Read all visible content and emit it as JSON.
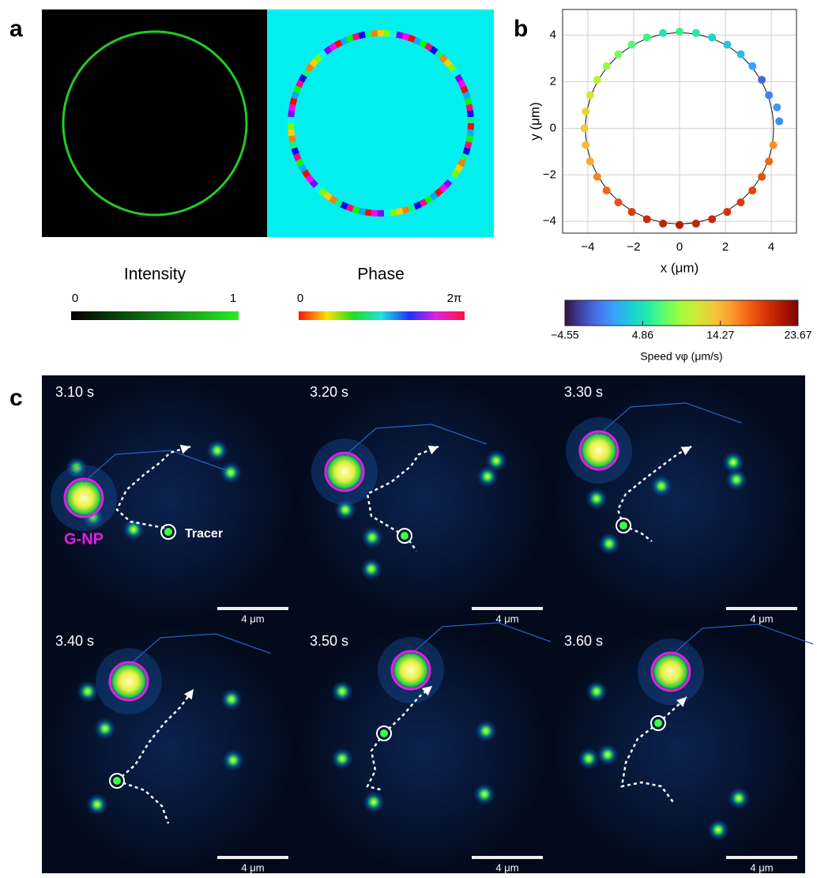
{
  "panel_labels": {
    "a": "a",
    "b": "b",
    "c": "c"
  },
  "panel_a": {
    "intensity": {
      "title": "Intensity",
      "min": "0",
      "max": "1"
    },
    "phase": {
      "title": "Phase",
      "min": "0",
      "max": "2π"
    }
  },
  "chart_data": {
    "type": "scatter",
    "xlabel": "x (μm)",
    "ylabel": "y (μm)",
    "x": [
      4.35,
      4.25,
      3.9,
      3.59,
      3.18,
      2.67,
      2.08,
      1.42,
      0.72,
      0.0,
      -0.72,
      -1.42,
      -2.08,
      -2.67,
      -3.18,
      -3.59,
      -3.9,
      -4.09,
      -4.15,
      -4.09,
      -3.9,
      -3.59,
      -3.18,
      -2.67,
      -2.08,
      -1.42,
      -0.72,
      0.0,
      0.72,
      1.42,
      2.08,
      2.67,
      3.18,
      3.59,
      3.9,
      4.09
    ],
    "values": [
      0.3,
      0.9,
      1.42,
      2.08,
      2.67,
      3.18,
      3.59,
      3.9,
      4.09,
      4.15,
      4.09,
      3.9,
      3.59,
      3.18,
      2.67,
      2.08,
      1.42,
      0.72,
      0.0,
      -0.72,
      -1.42,
      -2.08,
      -2.67,
      -3.18,
      -3.59,
      -3.9,
      -4.09,
      -4.15,
      -4.09,
      -3.9,
      -3.59,
      -3.18,
      -2.67,
      -2.08,
      -1.42,
      -0.72
    ],
    "speed": [
      0.5,
      1.0,
      0.0,
      -1.0,
      1.5,
      2.5,
      3.0,
      4.0,
      5.5,
      6.0,
      5.0,
      6.5,
      7.0,
      8.0,
      9.0,
      10.5,
      11.5,
      12.5,
      13.0,
      14.0,
      15.0,
      16.5,
      17.5,
      18.5,
      19.5,
      20.5,
      21.0,
      21.5,
      21.0,
      20.5,
      20.0,
      19.5,
      19.0,
      18.5,
      17.5,
      16.0
    ],
    "fit_radius": 4.1,
    "xlim": [
      -5.1,
      5.1
    ],
    "ylim": [
      -4.5,
      5.1
    ],
    "xticks": [
      {
        "value": -4,
        "label": "−4"
      },
      {
        "value": -2,
        "label": "−2"
      },
      0,
      2,
      4
    ],
    "yticks": [
      {
        "value": -4,
        "label": "−4"
      },
      {
        "value": -2,
        "label": "−2"
      },
      0,
      2,
      4
    ],
    "grid": true,
    "colorbar": {
      "label": "Speed vφ (μm/s)",
      "clim": [
        -4.55,
        23.67
      ],
      "ticks": [
        {
          "value": -4.55,
          "label": "−4.55"
        },
        4.86,
        14.27,
        23.67
      ],
      "colormap": [
        "#30123b",
        "#4145ab",
        "#4675ed",
        "#39a2fc",
        "#1bcfd4",
        "#24eca6",
        "#61fc6c",
        "#a4fc3b",
        "#d1e834",
        "#f3c63a",
        "#fe9b2d",
        "#f36315",
        "#d93806",
        "#b11901",
        "#7a0403"
      ]
    }
  },
  "panel_c": {
    "frames": [
      {
        "time": "3.10 s",
        "scale_bar": "4 μm"
      },
      {
        "time": "3.20 s",
        "scale_bar": "4 μm"
      },
      {
        "time": "3.30 s",
        "scale_bar": "4 μm"
      },
      {
        "time": "3.40 s",
        "scale_bar": "4 μm"
      },
      {
        "time": "3.50 s",
        "scale_bar": "4 μm"
      },
      {
        "time": "3.60 s",
        "scale_bar": "4 μm"
      }
    ],
    "gnp_label": "G-NP",
    "tracer_label": "Tracer"
  }
}
